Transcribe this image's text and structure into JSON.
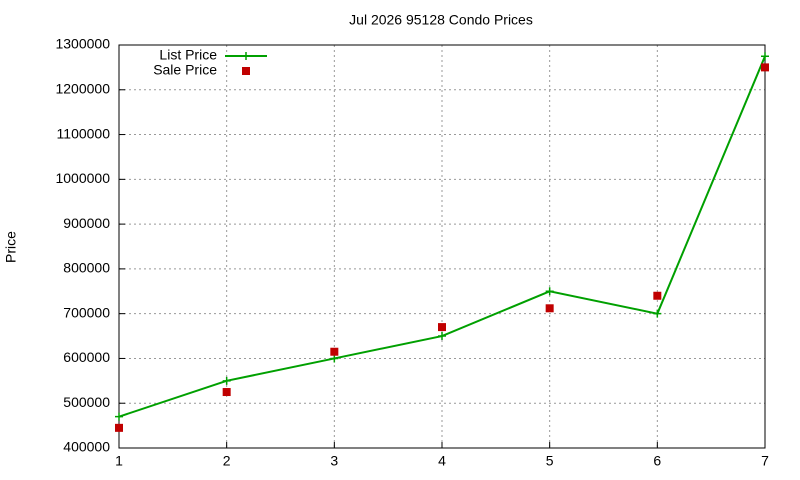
{
  "chart_data": {
    "type": "line",
    "title": "Jul 2026 95128 Condo Prices",
    "ylabel": "Price",
    "x": [
      1,
      2,
      3,
      4,
      5,
      6,
      7
    ],
    "series": [
      {
        "name": "List Price",
        "color": "#00a000",
        "style": "linespoints",
        "values": [
          470000,
          550000,
          600000,
          650000,
          750000,
          700000,
          1275000
        ]
      },
      {
        "name": "Sale Price",
        "color": "#c00000",
        "style": "points",
        "values": [
          445000,
          525000,
          615000,
          670000,
          712000,
          740000,
          1250000
        ]
      }
    ],
    "xlim": [
      1,
      7
    ],
    "xticks": [
      1,
      2,
      3,
      4,
      5,
      6,
      7
    ],
    "ylim": [
      400000,
      1300000
    ],
    "yticks": [
      400000,
      500000,
      600000,
      700000,
      800000,
      900000,
      1000000,
      1100000,
      1200000,
      1300000
    ],
    "grid": true,
    "legend": "top-left"
  }
}
